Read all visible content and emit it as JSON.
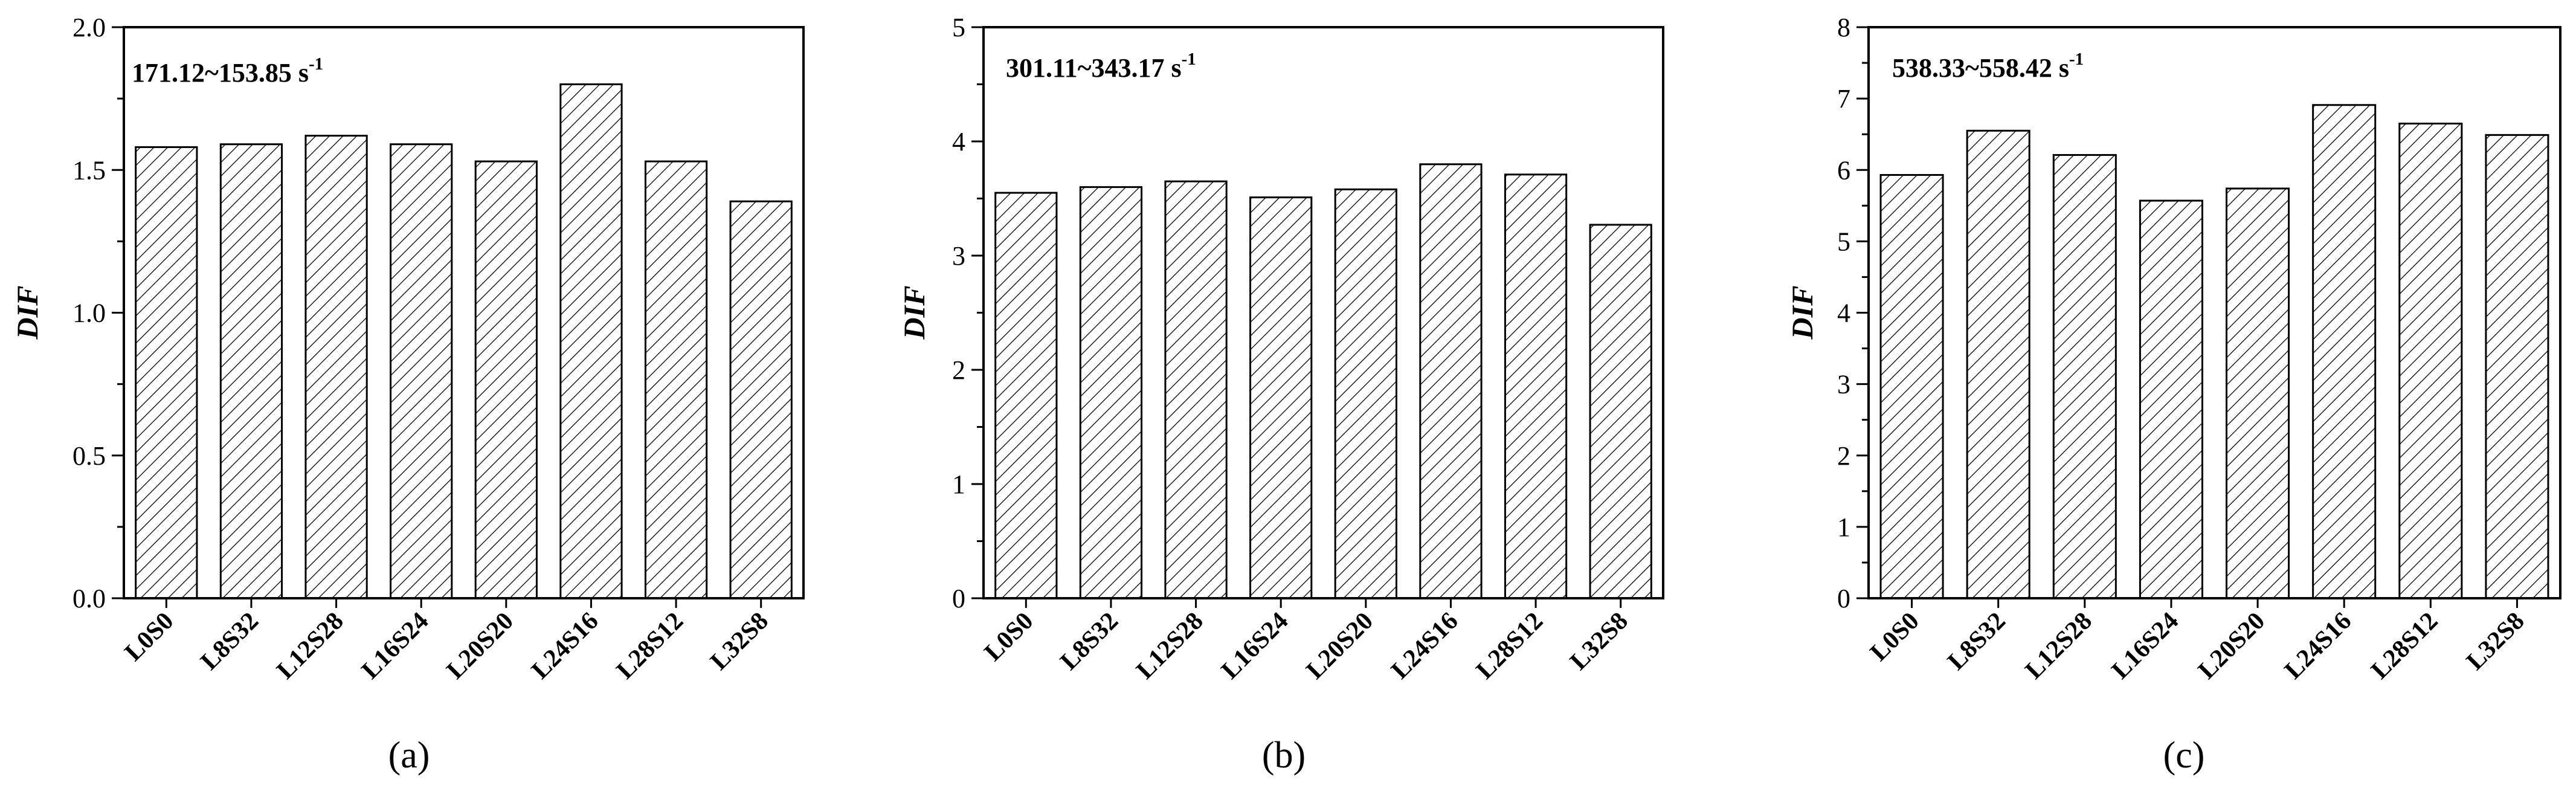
{
  "chart_data": [
    {
      "type": "bar",
      "panel_label": "(a)",
      "annotation": "171.12~153.85 s",
      "annotation_sup": "-1",
      "ylabel": "DIF",
      "xlabel": "",
      "categories": [
        "L0S0",
        "L8S32",
        "L12S28",
        "L16S24",
        "L20S20",
        "L24S16",
        "L28S12",
        "L32S8"
      ],
      "values": [
        1.58,
        1.59,
        1.62,
        1.59,
        1.53,
        1.8,
        1.53,
        1.39
      ],
      "ylim": [
        0,
        2.0
      ],
      "yticks": [
        "0.0",
        "0.5",
        "1.0",
        "1.5",
        "2.0"
      ],
      "ytick_values": [
        0,
        0.5,
        1.0,
        1.5,
        2.0
      ],
      "fill": "hatch",
      "grid": false
    },
    {
      "type": "bar",
      "panel_label": "(b)",
      "annotation": "301.11~343.17 s",
      "annotation_sup": "-1",
      "ylabel": "DIF",
      "xlabel": "",
      "categories": [
        "L0S0",
        "L8S32",
        "L12S28",
        "L16S24",
        "L20S20",
        "L24S16",
        "L28S12",
        "L32S8"
      ],
      "values": [
        3.55,
        3.6,
        3.65,
        3.51,
        3.58,
        3.8,
        3.71,
        3.27
      ],
      "ylim": [
        0,
        5
      ],
      "yticks": [
        "0",
        "1",
        "2",
        "3",
        "4",
        "5"
      ],
      "ytick_values": [
        0,
        1,
        2,
        3,
        4,
        5
      ],
      "fill": "hatch",
      "grid": false
    },
    {
      "type": "bar",
      "panel_label": "(c)",
      "annotation": "538.33~558.42 s",
      "annotation_sup": "-1",
      "ylabel": "DIF",
      "xlabel": "",
      "categories": [
        "L0S0",
        "L8S32",
        "L12S28",
        "L16S24",
        "L20S20",
        "L24S16",
        "L28S12",
        "L32S8"
      ],
      "values": [
        5.93,
        6.55,
        6.21,
        5.57,
        5.74,
        6.91,
        6.65,
        6.49
      ],
      "ylim": [
        0,
        8
      ],
      "yticks": [
        "0",
        "1",
        "2",
        "3",
        "4",
        "5",
        "6",
        "7",
        "8"
      ],
      "ytick_values": [
        0,
        1,
        2,
        3,
        4,
        5,
        6,
        7,
        8
      ],
      "fill": "hatch",
      "grid": false
    }
  ],
  "colors": {
    "bar_stroke": "#000000",
    "hatch": "#000000",
    "background": "#ffffff",
    "axis": "#000000"
  }
}
